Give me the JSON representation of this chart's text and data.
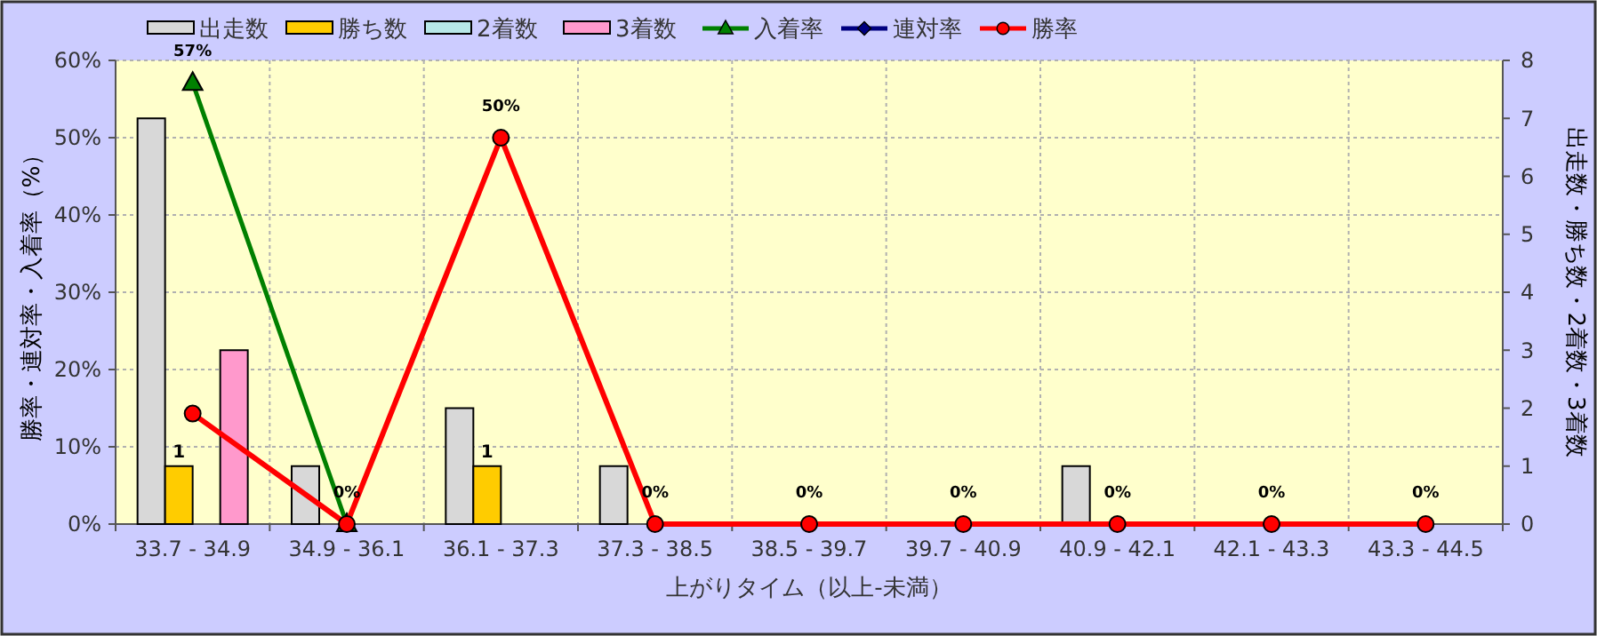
{
  "chart_data": {
    "type": "bar",
    "xlabel": "上がりタイム（以上-未満）",
    "ylabel": "勝率・連対率・入着率（%）",
    "y2label": "出走数・勝ち数・2着数・3着数",
    "categories": [
      "33.7 - 34.9",
      "34.9 - 36.1",
      "36.1 - 37.3",
      "37.3 - 38.5",
      "38.5 - 39.7",
      "39.7 - 40.9",
      "40.9 - 42.1",
      "42.1 - 43.3",
      "43.3 - 44.5"
    ],
    "series": [
      {
        "name": "出走数",
        "axis": "y2",
        "color": "#d8d8d8",
        "values": [
          7,
          1,
          2,
          1,
          0,
          0,
          1,
          0,
          0
        ]
      },
      {
        "name": "勝ち数",
        "axis": "y2",
        "color": "#ffcc00",
        "values": [
          1,
          0,
          1,
          0,
          0,
          0,
          0,
          0,
          0
        ],
        "value_labels": [
          "1",
          null,
          "1",
          null,
          null,
          null,
          null,
          null,
          null
        ]
      },
      {
        "name": "2着数",
        "axis": "y2",
        "color": "#b8e8e8",
        "values": [
          0,
          0,
          0,
          0,
          0,
          0,
          0,
          0,
          0
        ]
      },
      {
        "name": "3着数",
        "axis": "y2",
        "color": "#ff99cc",
        "values": [
          3,
          0,
          0,
          0,
          0,
          0,
          0,
          0,
          0
        ]
      },
      {
        "name": "入着率",
        "type": "line",
        "color": "#008000",
        "marker": "triangle",
        "values": [
          57.1,
          0,
          null,
          null,
          null,
          null,
          null,
          null,
          null
        ],
        "value_labels": [
          "57%",
          null,
          null,
          null,
          null,
          null,
          null,
          null,
          null
        ]
      },
      {
        "name": "連対率",
        "type": "line",
        "color": "#000080",
        "marker": "diamond",
        "values": [
          null,
          null,
          null,
          null,
          null,
          null,
          null,
          null,
          null
        ]
      },
      {
        "name": "勝率",
        "type": "line",
        "color": "#ff0000",
        "marker": "circle",
        "values": [
          14.3,
          0,
          50,
          0,
          0,
          0,
          0,
          0,
          0
        ],
        "value_labels": [
          null,
          "0%",
          "50%",
          "0%",
          "0%",
          "0%",
          "0%",
          "0%",
          "0%"
        ]
      }
    ],
    "ylim": [
      0,
      60
    ],
    "yticks": [
      {
        "value": 0,
        "label": "0%"
      },
      {
        "value": 10,
        "label": "10%"
      },
      {
        "value": 20,
        "label": "20%"
      },
      {
        "value": 30,
        "label": "30%"
      },
      {
        "value": 40,
        "label": "40%"
      },
      {
        "value": 50,
        "label": "50%"
      },
      {
        "value": 60,
        "label": "60%"
      }
    ],
    "y2lim": [
      0,
      8
    ],
    "y2ticks": [
      0,
      1,
      2,
      3,
      4,
      5,
      6,
      7,
      8
    ],
    "grid": true,
    "legend": "top left"
  }
}
